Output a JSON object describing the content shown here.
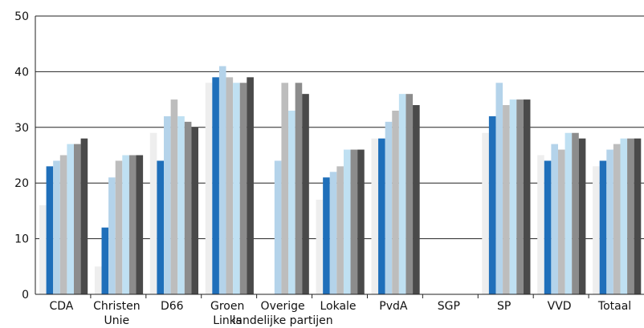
{
  "chart_data": {
    "type": "bar",
    "title": "",
    "xlabel": "",
    "ylabel": "",
    "ylim": [
      0,
      50
    ],
    "yticks": [
      0,
      10,
      20,
      30,
      40,
      50
    ],
    "grid": "horizontal",
    "categories": [
      [
        "CDA"
      ],
      [
        "Christen",
        "Unie"
      ],
      [
        "D66"
      ],
      [
        "Groen",
        "Links"
      ],
      [
        "Overige",
        "landelijke partijen"
      ],
      [
        "Lokale",
        ""
      ],
      [
        "PvdA"
      ],
      [
        "SGP"
      ],
      [
        "SP"
      ],
      [
        "VVD"
      ],
      [
        "Totaal"
      ]
    ],
    "series": [
      {
        "color": "#eeeeee",
        "values": [
          16,
          5,
          29,
          38,
          0,
          17,
          28,
          0,
          29,
          25,
          23
        ]
      },
      {
        "color": "#1f6fba",
        "values": [
          23,
          12,
          24,
          39,
          0,
          21,
          28,
          0,
          32,
          24,
          24
        ]
      },
      {
        "color": "#b4d3ea",
        "values": [
          24,
          21,
          32,
          41,
          24,
          22,
          31,
          0,
          38,
          27,
          26
        ]
      },
      {
        "color": "#bdbdbd",
        "values": [
          25,
          24,
          35,
          39,
          38,
          23,
          33,
          0,
          34,
          26,
          27
        ]
      },
      {
        "color": "#bfe0f2",
        "values": [
          27,
          25,
          32,
          38,
          33,
          26,
          36,
          0,
          35,
          29,
          28
        ]
      },
      {
        "color": "#8c8c8c",
        "values": [
          27,
          25,
          31,
          38,
          38,
          26,
          36,
          0,
          35,
          29,
          28
        ]
      },
      {
        "color": "#4a4a4a",
        "values": [
          28,
          25,
          30,
          39,
          36,
          26,
          34,
          0,
          35,
          28,
          28
        ]
      }
    ]
  }
}
